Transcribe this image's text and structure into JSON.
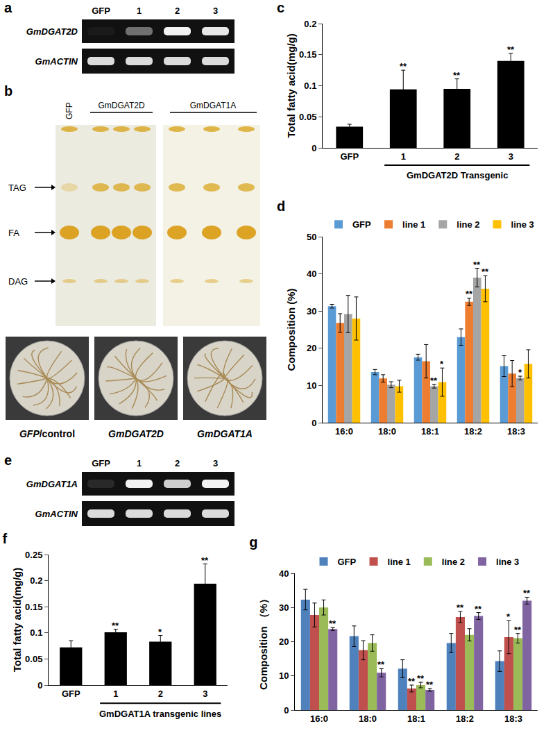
{
  "panels": {
    "a": {
      "label": "a",
      "lanes": [
        "GFP",
        "1",
        "2",
        "3"
      ],
      "rows": [
        "GmDGAT2D",
        "GmACTIN"
      ]
    },
    "b": {
      "label": "b",
      "plate_labels": [
        "GFP",
        "GmDGAT2D",
        "GmDGAT1A"
      ],
      "bands": [
        "TAG",
        "FA",
        "DAG"
      ],
      "photo_labels": [
        {
          "italic": "GFP",
          "plain": "/control"
        },
        {
          "italic": "GmDGAT2D"
        },
        {
          "italic": "GmDGAT1A"
        }
      ]
    },
    "e": {
      "label": "e",
      "lanes": [
        "GFP",
        "1",
        "2",
        "3"
      ],
      "rows": [
        "GmDGAT1A",
        "GmACTIN"
      ]
    }
  },
  "chart_data": [
    {
      "type": "bar",
      "title": "c",
      "categories": [
        "GFP",
        "1",
        "2",
        "3"
      ],
      "values": [
        0.034,
        0.094,
        0.095,
        0.14
      ],
      "error": [
        0.004,
        0.031,
        0.016,
        0.012
      ],
      "significance": [
        null,
        "**",
        "**",
        "**"
      ],
      "color": "#000000",
      "ylabel": "Total fatty acid(mg/g)",
      "xlabel": "GmDGAT2D Transgenic",
      "ylim": [
        0,
        0.2
      ],
      "yticks": [
        0,
        0.05,
        0.1,
        0.15,
        0.2
      ],
      "grid": false
    },
    {
      "type": "bar",
      "title": "d",
      "categories": [
        "16:0",
        "18:0",
        "18:1",
        "18:2",
        "18:3"
      ],
      "series": [
        {
          "name": "GFP",
          "color": "#5b9bd5",
          "values": [
            31.3,
            13.6,
            17.6,
            23,
            15.2
          ],
          "error": [
            0.5,
            0.7,
            0.8,
            2.2,
            2.8
          ],
          "significance": [
            null,
            null,
            null,
            null,
            null
          ]
        },
        {
          "name": "line 1",
          "color": "#ed7d31",
          "values": [
            26.8,
            11.9,
            16.5,
            32.5,
            13.2
          ],
          "error": [
            2.5,
            1,
            4.5,
            1,
            3.5
          ],
          "significance": [
            null,
            null,
            null,
            "**",
            null
          ]
        },
        {
          "name": "line 2",
          "color": "#a5a5a5",
          "values": [
            29.2,
            10.2,
            9.8,
            39,
            12
          ],
          "error": [
            5,
            0.8,
            0.5,
            2.5,
            0.5
          ],
          "significance": [
            null,
            null,
            "**",
            "**",
            "*"
          ]
        },
        {
          "name": "line 3",
          "color": "#ffc000",
          "values": [
            28,
            9.8,
            10.9,
            36,
            15.8
          ],
          "error": [
            5.8,
            1.6,
            3.8,
            3.5,
            3.8
          ],
          "significance": [
            null,
            null,
            "*",
            "**",
            null
          ]
        }
      ],
      "ylabel": "Composition (%)",
      "ylim": [
        0,
        50
      ],
      "yticks": [
        0,
        10,
        20,
        30,
        40,
        50
      ],
      "grid": false,
      "legend": "top right"
    },
    {
      "type": "bar",
      "title": "f",
      "categories": [
        "GFP",
        "1",
        "2",
        "3"
      ],
      "values": [
        0.072,
        0.101,
        0.083,
        0.194
      ],
      "error": [
        0.013,
        0.006,
        0.012,
        0.038
      ],
      "significance": [
        null,
        "**",
        "*",
        "**"
      ],
      "color": "#000000",
      "ylabel": "Total fatty acid(mg/g)",
      "xlabel": "GmDGAT1A transgenic lines",
      "ylim": [
        0,
        0.25
      ],
      "yticks": [
        0,
        0.05,
        0.1,
        0.15,
        0.2,
        0.25
      ],
      "grid": false
    },
    {
      "type": "bar",
      "title": "g",
      "categories": [
        "16:0",
        "18:0",
        "18:1",
        "18:2",
        "18:3"
      ],
      "series": [
        {
          "name": "GFP",
          "color": "#4f81bd",
          "values": [
            32.3,
            21.6,
            12.1,
            19.6,
            14.3
          ],
          "error": [
            3,
            3,
            2.6,
            2.8,
            3
          ],
          "significance": [
            null,
            null,
            null,
            null,
            null
          ]
        },
        {
          "name": "line 1",
          "color": "#c0504d",
          "values": [
            27.8,
            17.5,
            6.3,
            27.2,
            21.3
          ],
          "error": [
            3.5,
            2.8,
            1,
            1.6,
            4.8
          ],
          "significance": [
            null,
            null,
            "**",
            "**",
            "*"
          ]
        },
        {
          "name": "line 2",
          "color": "#9bbb59",
          "values": [
            30,
            19.6,
            7.3,
            22,
            21
          ],
          "error": [
            2.2,
            2.4,
            0.8,
            1.8,
            1.4
          ],
          "significance": [
            null,
            null,
            "**",
            null,
            "**"
          ]
        },
        {
          "name": "line 3",
          "color": "#8064a2",
          "values": [
            23.7,
            10.9,
            5.9,
            27.5,
            32
          ],
          "error": [
            0.4,
            1.2,
            0.4,
            1,
            1
          ],
          "significance": [
            "**",
            "**",
            "**",
            "**",
            "**"
          ]
        }
      ],
      "ylabel": "Composition （%）",
      "ylim": [
        0,
        40
      ],
      "yticks": [
        0,
        10,
        20,
        30,
        40
      ],
      "grid": false,
      "legend": "top"
    }
  ]
}
